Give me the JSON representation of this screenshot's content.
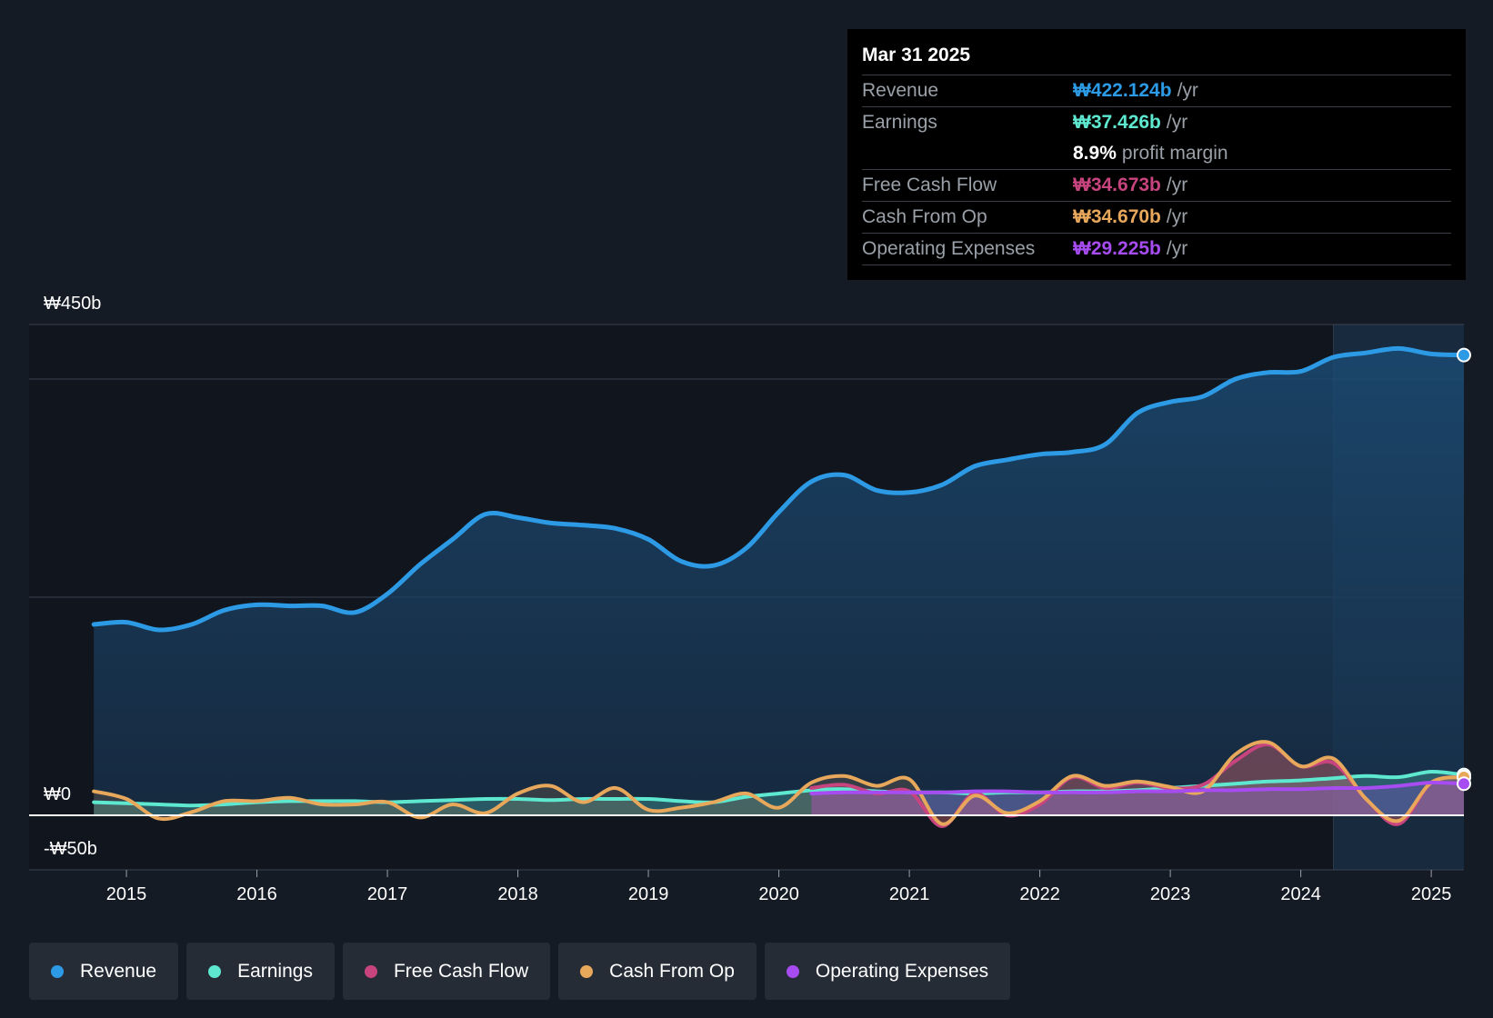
{
  "colors": {
    "revenue": "#2d9ae6",
    "earnings": "#5ee8d0",
    "free_cash_flow": "#c8447e",
    "cash_from_op": "#e8a85b",
    "operating_expenses": "#a64cf0"
  },
  "tooltip": {
    "date": "Mar 31 2025",
    "rows": [
      {
        "label": "Revenue",
        "value": "₩422.124b",
        "unit": "/yr"
      },
      {
        "label": "Earnings",
        "value": "₩37.426b",
        "unit": "/yr"
      },
      {
        "label": "",
        "value": "8.9%",
        "unit": "profit margin"
      },
      {
        "label": "Free Cash Flow",
        "value": "₩34.673b",
        "unit": "/yr"
      },
      {
        "label": "Cash From Op",
        "value": "₩34.670b",
        "unit": "/yr"
      },
      {
        "label": "Operating Expenses",
        "value": "₩29.225b",
        "unit": "/yr"
      }
    ]
  },
  "legend": [
    {
      "label": "Revenue"
    },
    {
      "label": "Earnings"
    },
    {
      "label": "Free Cash Flow"
    },
    {
      "label": "Cash From Op"
    },
    {
      "label": "Operating Expenses"
    }
  ],
  "chart_data": {
    "type": "line",
    "ylim": [
      -50,
      450
    ],
    "y_tick_labels": [
      "₩450b",
      "₩0",
      "-₩50b"
    ],
    "x_tick_labels": [
      "2015",
      "2016",
      "2017",
      "2018",
      "2019",
      "2020",
      "2021",
      "2022",
      "2023",
      "2024",
      "2025"
    ],
    "x_ticks": [
      2015,
      2016,
      2017,
      2018,
      2019,
      2020,
      2021,
      2022,
      2023,
      2024,
      2025
    ],
    "xlim": [
      2014.7,
      2025.25
    ],
    "highlight_start": 2024.25,
    "grid": true,
    "series": [
      {
        "name": "Revenue",
        "color_key": "revenue",
        "points": [
          [
            2014.75,
            175
          ],
          [
            2015.0,
            177
          ],
          [
            2015.25,
            170
          ],
          [
            2015.5,
            175
          ],
          [
            2015.75,
            188
          ],
          [
            2016.0,
            193
          ],
          [
            2016.25,
            192
          ],
          [
            2016.5,
            192
          ],
          [
            2016.75,
            186
          ],
          [
            2017.0,
            203
          ],
          [
            2017.25,
            230
          ],
          [
            2017.5,
            253
          ],
          [
            2017.75,
            276
          ],
          [
            2018.0,
            273
          ],
          [
            2018.25,
            268
          ],
          [
            2018.5,
            266
          ],
          [
            2018.75,
            263
          ],
          [
            2019.0,
            253
          ],
          [
            2019.25,
            233
          ],
          [
            2019.5,
            229
          ],
          [
            2019.75,
            245
          ],
          [
            2020.0,
            278
          ],
          [
            2020.25,
            306
          ],
          [
            2020.5,
            312
          ],
          [
            2020.75,
            298
          ],
          [
            2021.0,
            296
          ],
          [
            2021.25,
            303
          ],
          [
            2021.5,
            320
          ],
          [
            2021.75,
            326
          ],
          [
            2022.0,
            331
          ],
          [
            2022.25,
            333
          ],
          [
            2022.5,
            340
          ],
          [
            2022.75,
            369
          ],
          [
            2023.0,
            379
          ],
          [
            2023.25,
            384
          ],
          [
            2023.5,
            400
          ],
          [
            2023.75,
            406
          ],
          [
            2024.0,
            407
          ],
          [
            2024.25,
            420
          ],
          [
            2024.5,
            424
          ],
          [
            2024.75,
            428
          ],
          [
            2025.0,
            423
          ],
          [
            2025.25,
            422
          ]
        ]
      },
      {
        "name": "Earnings",
        "color_key": "earnings",
        "points": [
          [
            2014.75,
            12
          ],
          [
            2015.0,
            11
          ],
          [
            2015.25,
            10
          ],
          [
            2015.5,
            9
          ],
          [
            2015.75,
            10
          ],
          [
            2016.0,
            12
          ],
          [
            2016.25,
            13
          ],
          [
            2016.5,
            13
          ],
          [
            2016.75,
            13
          ],
          [
            2017.0,
            12
          ],
          [
            2017.25,
            13
          ],
          [
            2017.5,
            14
          ],
          [
            2017.75,
            15
          ],
          [
            2018.0,
            15
          ],
          [
            2018.25,
            14
          ],
          [
            2018.5,
            15
          ],
          [
            2018.75,
            15
          ],
          [
            2019.0,
            15
          ],
          [
            2019.25,
            13
          ],
          [
            2019.5,
            12
          ],
          [
            2019.75,
            17
          ],
          [
            2020.0,
            20
          ],
          [
            2020.25,
            23
          ],
          [
            2020.5,
            24
          ],
          [
            2020.75,
            22
          ],
          [
            2021.0,
            21
          ],
          [
            2021.25,
            21
          ],
          [
            2021.5,
            20
          ],
          [
            2021.75,
            21
          ],
          [
            2022.0,
            21
          ],
          [
            2022.25,
            22
          ],
          [
            2022.5,
            22
          ],
          [
            2022.75,
            23
          ],
          [
            2023.0,
            25
          ],
          [
            2023.25,
            27
          ],
          [
            2023.5,
            29
          ],
          [
            2023.75,
            31
          ],
          [
            2024.0,
            32
          ],
          [
            2024.25,
            34
          ],
          [
            2024.5,
            36
          ],
          [
            2024.75,
            35
          ],
          [
            2025.0,
            40
          ],
          [
            2025.25,
            37
          ]
        ]
      },
      {
        "name": "Free Cash Flow",
        "color_key": "free_cash_flow",
        "points": [
          [
            2020.25,
            25
          ],
          [
            2020.5,
            28
          ],
          [
            2020.75,
            20
          ],
          [
            2021.0,
            22
          ],
          [
            2021.25,
            -10
          ],
          [
            2021.5,
            20
          ],
          [
            2021.75,
            0
          ],
          [
            2022.0,
            10
          ],
          [
            2022.25,
            35
          ],
          [
            2022.5,
            25
          ],
          [
            2022.75,
            30
          ],
          [
            2023.0,
            25
          ],
          [
            2023.25,
            28
          ],
          [
            2023.5,
            50
          ],
          [
            2023.75,
            65
          ],
          [
            2024.0,
            45
          ],
          [
            2024.25,
            48
          ],
          [
            2024.5,
            15
          ],
          [
            2024.75,
            -8
          ],
          [
            2025.0,
            30
          ],
          [
            2025.25,
            35
          ]
        ]
      },
      {
        "name": "Cash From Op",
        "color_key": "cash_from_op",
        "points": [
          [
            2014.75,
            22
          ],
          [
            2015.0,
            15
          ],
          [
            2015.25,
            -3
          ],
          [
            2015.5,
            3
          ],
          [
            2015.75,
            13
          ],
          [
            2016.0,
            13
          ],
          [
            2016.25,
            16
          ],
          [
            2016.5,
            10
          ],
          [
            2016.75,
            10
          ],
          [
            2017.0,
            12
          ],
          [
            2017.25,
            -2
          ],
          [
            2017.5,
            10
          ],
          [
            2017.75,
            2
          ],
          [
            2018.0,
            20
          ],
          [
            2018.25,
            27
          ],
          [
            2018.5,
            12
          ],
          [
            2018.75,
            25
          ],
          [
            2019.0,
            5
          ],
          [
            2019.25,
            7
          ],
          [
            2019.5,
            12
          ],
          [
            2019.75,
            20
          ],
          [
            2020.0,
            7
          ],
          [
            2020.25,
            30
          ],
          [
            2020.5,
            36
          ],
          [
            2020.75,
            27
          ],
          [
            2021.0,
            33
          ],
          [
            2021.25,
            -8
          ],
          [
            2021.5,
            18
          ],
          [
            2021.75,
            2
          ],
          [
            2022.0,
            13
          ],
          [
            2022.25,
            36
          ],
          [
            2022.5,
            27
          ],
          [
            2022.75,
            31
          ],
          [
            2023.0,
            26
          ],
          [
            2023.25,
            22
          ],
          [
            2023.5,
            56
          ],
          [
            2023.75,
            67
          ],
          [
            2024.0,
            45
          ],
          [
            2024.25,
            52
          ],
          [
            2024.5,
            15
          ],
          [
            2024.75,
            -5
          ],
          [
            2025.0,
            30
          ],
          [
            2025.25,
            35
          ]
        ]
      },
      {
        "name": "Operating Expenses",
        "color_key": "operating_expenses",
        "points": [
          [
            2020.25,
            20
          ],
          [
            2020.5,
            21
          ],
          [
            2020.75,
            21
          ],
          [
            2021.0,
            21
          ],
          [
            2021.25,
            21
          ],
          [
            2021.5,
            22
          ],
          [
            2021.75,
            22
          ],
          [
            2022.0,
            21
          ],
          [
            2022.25,
            21
          ],
          [
            2022.5,
            21
          ],
          [
            2022.75,
            22
          ],
          [
            2023.0,
            22
          ],
          [
            2023.25,
            23
          ],
          [
            2023.5,
            23
          ],
          [
            2023.75,
            24
          ],
          [
            2024.0,
            24
          ],
          [
            2024.25,
            25
          ],
          [
            2024.5,
            25
          ],
          [
            2024.75,
            27
          ],
          [
            2025.0,
            30
          ],
          [
            2025.25,
            29
          ]
        ]
      }
    ]
  }
}
